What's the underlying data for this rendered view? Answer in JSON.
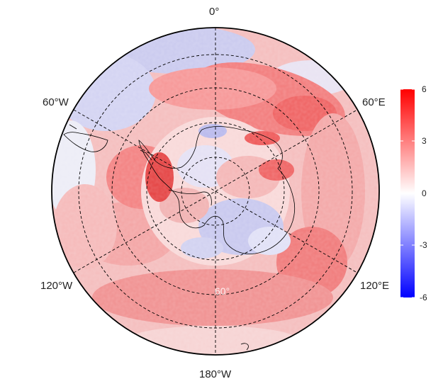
{
  "map": {
    "projection": "south-polar-stereographic",
    "longitude_labels": {
      "top": "0°",
      "upper_left": "60°W",
      "upper_right": "60°E",
      "lower_left": "120°W",
      "lower_right": "120°E",
      "bottom": "180°W"
    },
    "latitude_label": "60°",
    "colorbar": {
      "min": -6,
      "max": 6,
      "ticks": [
        "6",
        "3",
        "0",
        "-3",
        "-6"
      ],
      "colors": {
        "high": "#ff0000",
        "mid": "#ffffff",
        "low": "#0000ff"
      }
    }
  }
}
